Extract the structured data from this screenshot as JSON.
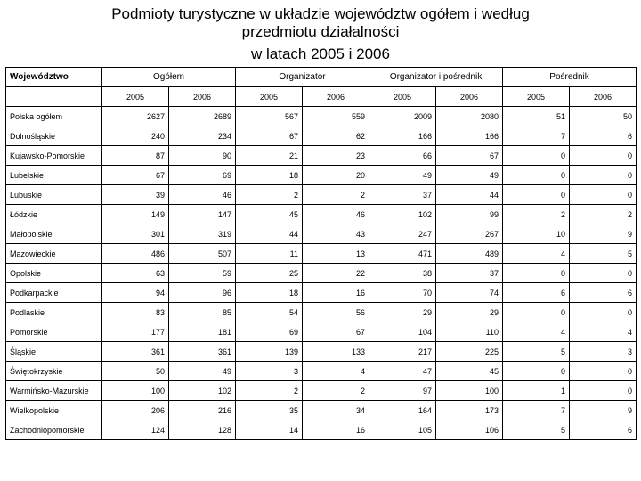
{
  "title_line1": "Podmioty turystyczne w układzie województw ogółem i według",
  "title_line2": "przedmiotu działalności",
  "title_line3": "w latach 2005 i 2006",
  "headers": {
    "row_label": "Województwo",
    "groups": [
      "Ogółem",
      "Organizator",
      "Organizator i pośrednik",
      "Pośrednik"
    ],
    "years": [
      "2005",
      "2006",
      "2005",
      "2006",
      "2005",
      "2006",
      "2005",
      "2006"
    ]
  },
  "table": {
    "columns": [
      "label",
      "v0",
      "v1",
      "v2",
      "v3",
      "v4",
      "v5",
      "v6",
      "v7"
    ],
    "rows": [
      {
        "label": "Polska ogółem",
        "v0": "2627",
        "v1": "2689",
        "v2": "567",
        "v3": "559",
        "v4": "2009",
        "v5": "2080",
        "v6": "51",
        "v7": "50"
      },
      {
        "label": "Dolnośląskie",
        "v0": "240",
        "v1": "234",
        "v2": "67",
        "v3": "62",
        "v4": "166",
        "v5": "166",
        "v6": "7",
        "v7": "6"
      },
      {
        "label": "Kujawsko-Pomorskie",
        "v0": "87",
        "v1": "90",
        "v2": "21",
        "v3": "23",
        "v4": "66",
        "v5": "67",
        "v6": "0",
        "v7": "0"
      },
      {
        "label": "Lubelskie",
        "v0": "67",
        "v1": "69",
        "v2": "18",
        "v3": "20",
        "v4": "49",
        "v5": "49",
        "v6": "0",
        "v7": "0"
      },
      {
        "label": "Lubuskie",
        "v0": "39",
        "v1": "46",
        "v2": "2",
        "v3": "2",
        "v4": "37",
        "v5": "44",
        "v6": "0",
        "v7": "0"
      },
      {
        "label": "Łódzkie",
        "v0": "149",
        "v1": "147",
        "v2": "45",
        "v3": "46",
        "v4": "102",
        "v5": "99",
        "v6": "2",
        "v7": "2"
      },
      {
        "label": "Małopolskie",
        "v0": "301",
        "v1": "319",
        "v2": "44",
        "v3": "43",
        "v4": "247",
        "v5": "267",
        "v6": "10",
        "v7": "9"
      },
      {
        "label": "Mazowieckie",
        "v0": "486",
        "v1": "507",
        "v2": "11",
        "v3": "13",
        "v4": "471",
        "v5": "489",
        "v6": "4",
        "v7": "5"
      },
      {
        "label": "Opolskie",
        "v0": "63",
        "v1": "59",
        "v2": "25",
        "v3": "22",
        "v4": "38",
        "v5": "37",
        "v6": "0",
        "v7": "0"
      },
      {
        "label": "Podkarpackie",
        "v0": "94",
        "v1": "96",
        "v2": "18",
        "v3": "16",
        "v4": "70",
        "v5": "74",
        "v6": "6",
        "v7": "6"
      },
      {
        "label": "Podlaskie",
        "v0": "83",
        "v1": "85",
        "v2": "54",
        "v3": "56",
        "v4": "29",
        "v5": "29",
        "v6": "0",
        "v7": "0"
      },
      {
        "label": "Pomorskie",
        "v0": "177",
        "v1": "181",
        "v2": "69",
        "v3": "67",
        "v4": "104",
        "v5": "110",
        "v6": "4",
        "v7": "4"
      },
      {
        "label": "Śląskie",
        "v0": "361",
        "v1": "361",
        "v2": "139",
        "v3": "133",
        "v4": "217",
        "v5": "225",
        "v6": "5",
        "v7": "3"
      },
      {
        "label": "Świętokrzyskie",
        "v0": "50",
        "v1": "49",
        "v2": "3",
        "v3": "4",
        "v4": "47",
        "v5": "45",
        "v6": "0",
        "v7": "0"
      },
      {
        "label": "Warmińsko-Mazurskie",
        "v0": "100",
        "v1": "102",
        "v2": "2",
        "v3": "2",
        "v4": "97",
        "v5": "100",
        "v6": "1",
        "v7": "0"
      },
      {
        "label": "Wielkopolskie",
        "v0": "206",
        "v1": "216",
        "v2": "35",
        "v3": "34",
        "v4": "164",
        "v5": "173",
        "v6": "7",
        "v7": "9"
      },
      {
        "label": "Zachodniopomorskie",
        "v0": "124",
        "v1": "128",
        "v2": "14",
        "v3": "16",
        "v4": "105",
        "v5": "106",
        "v6": "5",
        "v7": "6"
      }
    ]
  },
  "style": {
    "title_fontsize": 17,
    "header_fontsize": 10,
    "cell_fontsize": 9,
    "border_color": "#000000",
    "background": "#ffffff",
    "text_color": "#000000"
  }
}
